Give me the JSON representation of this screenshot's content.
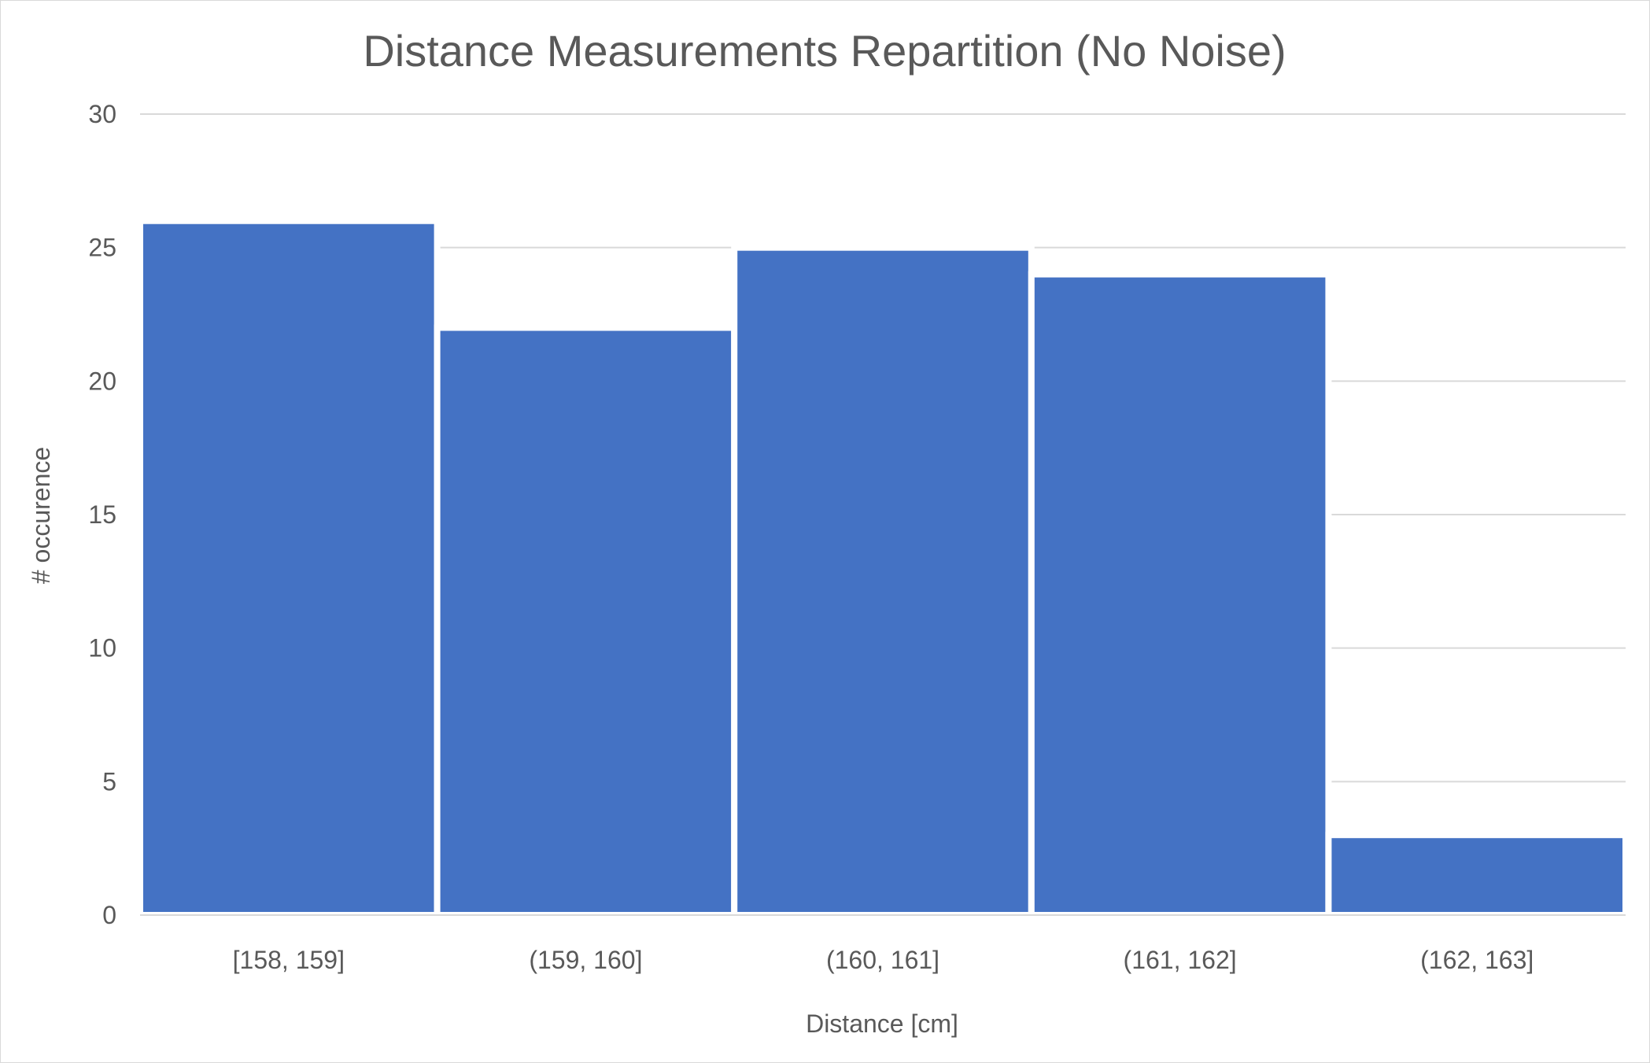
{
  "chart_data": {
    "type": "bar",
    "title": "Distance Measurements Repartition (No Noise)",
    "xlabel": "Distance [cm]",
    "ylabel": "# occurence",
    "categories": [
      "[158, 159]",
      "(159, 160]",
      "(160, 161]",
      "(161, 162]",
      "(162, 163]"
    ],
    "values": [
      26,
      22,
      25,
      24,
      3
    ],
    "ylim": [
      0,
      30
    ],
    "yticks": [
      0,
      5,
      10,
      15,
      20,
      25,
      30
    ],
    "grid": true,
    "legend": "none",
    "bar_color": "#4472C4"
  }
}
